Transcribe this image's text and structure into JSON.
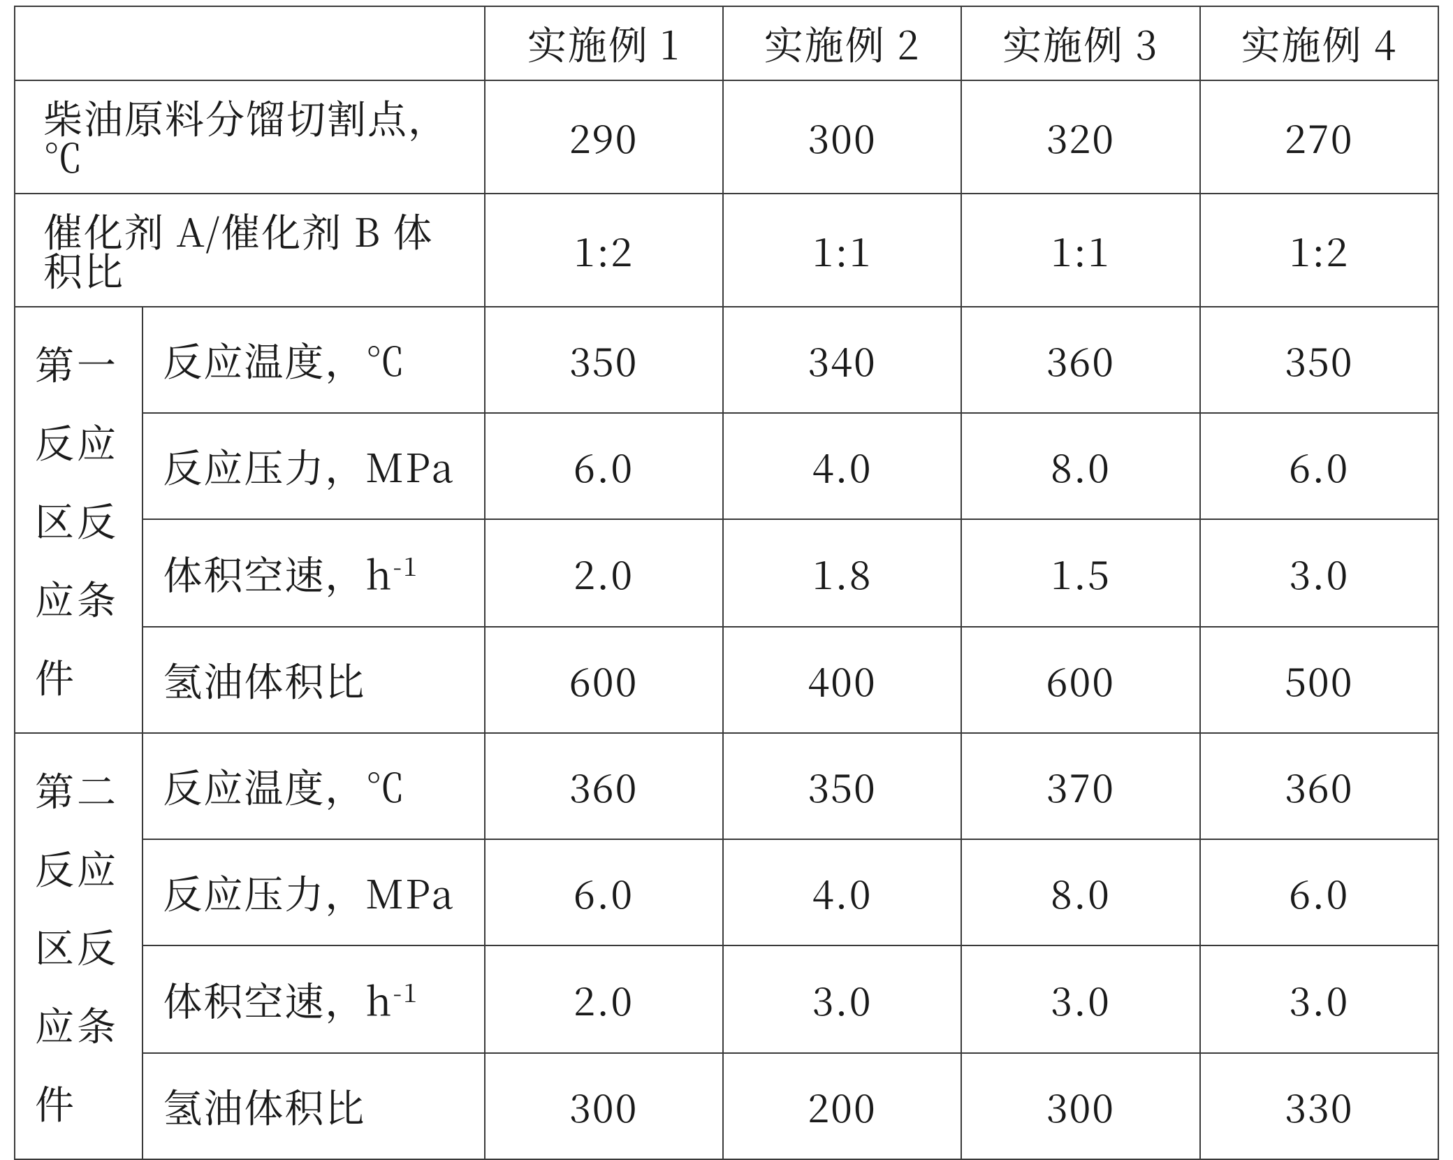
{
  "table": {
    "border_color": "#3a3a3a",
    "background_color": "#ffffff",
    "text_color": "#1a1a1a",
    "font_size_pt": 42,
    "columns": {
      "blank": "",
      "ex1": "实施例 1",
      "ex2": "实施例 2",
      "ex3": "实施例 3",
      "ex4": "实施例 4"
    },
    "row_cut_point": {
      "label": "柴油原料分馏切割点，℃",
      "ex1": "290",
      "ex2": "300",
      "ex3": "320",
      "ex4": "270"
    },
    "row_catalyst_ratio": {
      "label": "催化剂 A/催化剂 B 体积比",
      "ex1": "1:2",
      "ex2": "1:1",
      "ex3": "1:1",
      "ex4": "1:2"
    },
    "zone1": {
      "group_label": "第一反应区反应条件",
      "temp": {
        "label": "反应温度，℃",
        "ex1": "350",
        "ex2": "340",
        "ex3": "360",
        "ex4": "350"
      },
      "press": {
        "label": "反应压力，MPa",
        "ex1": "6.0",
        "ex2": "4.0",
        "ex3": "8.0",
        "ex4": "6.0"
      },
      "space": {
        "label_prefix": "体积空速，h",
        "label_sup": "-1",
        "ex1": "2.0",
        "ex2": "1.8",
        "ex3": "1.5",
        "ex4": "3.0"
      },
      "h2oil": {
        "label": "氢油体积比",
        "ex1": "600",
        "ex2": "400",
        "ex3": "600",
        "ex4": "500"
      }
    },
    "zone2": {
      "group_label": "第二反应区反应条件",
      "temp": {
        "label": "反应温度，℃",
        "ex1": "360",
        "ex2": "350",
        "ex3": "370",
        "ex4": "360"
      },
      "press": {
        "label": "反应压力，MPa",
        "ex1": "6.0",
        "ex2": "4.0",
        "ex3": "8.0",
        "ex4": "6.0"
      },
      "space": {
        "label_prefix": "体积空速，h",
        "label_sup": "-1",
        "ex1": "2.0",
        "ex2": "3.0",
        "ex3": "3.0",
        "ex4": "3.0"
      },
      "h2oil": {
        "label": "氢油体积比",
        "ex1": "300",
        "ex2": "200",
        "ex3": "300",
        "ex4": "330"
      }
    }
  }
}
